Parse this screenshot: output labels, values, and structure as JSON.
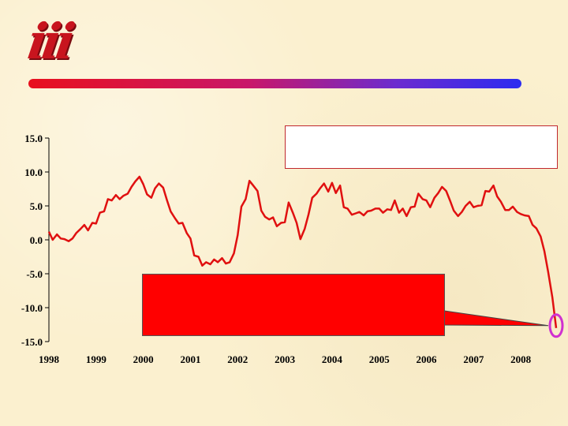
{
  "logo": {
    "text": "iii",
    "color": "#c8141e"
  },
  "colors": {
    "line": "#e01010",
    "callout": "#ff0000",
    "highlight": "#d030d0",
    "background": "#fbf0cf"
  },
  "chart_data": {
    "type": "line",
    "title": "",
    "xlabel": "",
    "ylabel": "",
    "ylim": [
      -15,
      15
    ],
    "xlim": [
      1998,
      2008.8
    ],
    "yticks": [
      "15.0",
      "10.0",
      "5.0",
      "0.0",
      "-5.0",
      "-10.0",
      "-15.0"
    ],
    "ytick_values": [
      15,
      10,
      5,
      0,
      -5,
      -10,
      -15
    ],
    "xticks": [
      "1998",
      "1999",
      "2000",
      "2001",
      "2002",
      "2003",
      "2004",
      "2005",
      "2006",
      "2007",
      "2008"
    ],
    "grid": false,
    "series": [
      {
        "x": [
          1998.0,
          1998.08,
          1998.17,
          1998.25,
          1998.33,
          1998.42,
          1998.5,
          1998.58,
          1998.67,
          1998.75,
          1998.83,
          1998.92,
          1999.0,
          1999.08,
          1999.17,
          1999.25,
          1999.33,
          1999.42,
          1999.5,
          1999.58,
          1999.67,
          1999.75,
          1999.83,
          1999.92,
          2000.0,
          2000.08,
          2000.17,
          2000.25,
          2000.33,
          2000.42,
          2000.5,
          2000.58,
          2000.67,
          2000.75,
          2000.83,
          2000.92,
          2001.0,
          2001.08,
          2001.17,
          2001.25,
          2001.33,
          2001.42,
          2001.5,
          2001.58,
          2001.67,
          2001.75,
          2001.83,
          2001.92,
          2002.0,
          2002.08,
          2002.17,
          2002.25,
          2002.33,
          2002.42,
          2002.5,
          2002.58,
          2002.67,
          2002.75,
          2002.83,
          2002.92,
          2003.0,
          2003.08,
          2003.17,
          2003.25,
          2003.33,
          2003.42,
          2003.5,
          2003.58,
          2003.67,
          2003.75,
          2003.83,
          2003.92,
          2004.0,
          2004.08,
          2004.17,
          2004.25,
          2004.33,
          2004.42,
          2004.5,
          2004.58,
          2004.67,
          2004.75,
          2004.83,
          2004.92,
          2005.0,
          2005.08,
          2005.17,
          2005.25,
          2005.33,
          2005.42,
          2005.5,
          2005.58,
          2005.67,
          2005.75,
          2005.83,
          2005.92,
          2006.0,
          2006.08,
          2006.17,
          2006.25,
          2006.33,
          2006.42,
          2006.5,
          2006.58,
          2006.67,
          2006.75,
          2006.83,
          2006.92,
          2007.0,
          2007.08,
          2007.17,
          2007.25,
          2007.33,
          2007.42,
          2007.5,
          2007.58,
          2007.67,
          2007.75,
          2007.83,
          2007.92,
          2008.0,
          2008.08,
          2008.17,
          2008.25,
          2008.33,
          2008.42,
          2008.5,
          2008.58,
          2008.67,
          2008.75
        ],
        "values": [
          1.2,
          0.0,
          0.8,
          0.2,
          0.1,
          -0.2,
          0.2,
          1.0,
          1.6,
          2.2,
          1.4,
          2.5,
          2.4,
          4.0,
          4.2,
          6.0,
          5.8,
          6.6,
          6.0,
          6.5,
          6.8,
          7.8,
          8.6,
          9.3,
          8.2,
          6.7,
          6.2,
          7.6,
          8.3,
          7.7,
          5.9,
          4.2,
          3.2,
          2.4,
          2.5,
          1.0,
          0.2,
          -2.3,
          -2.5,
          -3.8,
          -3.3,
          -3.6,
          -2.9,
          -3.3,
          -2.7,
          -3.5,
          -3.3,
          -2.0,
          0.7,
          4.9,
          6.0,
          8.7,
          8.0,
          7.2,
          4.3,
          3.4,
          3.0,
          3.3,
          2.0,
          2.5,
          2.6,
          5.5,
          4.0,
          2.5,
          0.1,
          1.6,
          3.7,
          6.2,
          6.8,
          7.6,
          8.3,
          7.1,
          8.4,
          6.9,
          8.0,
          4.8,
          4.6,
          3.7,
          3.9,
          4.1,
          3.6,
          4.2,
          4.3,
          4.6,
          4.6,
          4.0,
          4.5,
          4.4,
          5.8,
          4.0,
          4.6,
          3.5,
          4.8,
          4.9,
          6.8,
          6.0,
          5.8,
          4.8,
          6.2,
          6.9,
          7.8,
          7.2,
          5.8,
          4.3,
          3.5,
          4.1,
          5.0,
          5.6,
          4.8,
          5.0,
          5.1,
          7.2,
          7.1,
          8.0,
          6.4,
          5.6,
          4.4,
          4.4,
          4.9,
          4.1,
          3.8,
          3.6,
          3.5,
          2.2,
          1.7,
          0.5,
          -1.7,
          -4.7,
          -8.5,
          -13.0
        ]
      }
    ]
  }
}
